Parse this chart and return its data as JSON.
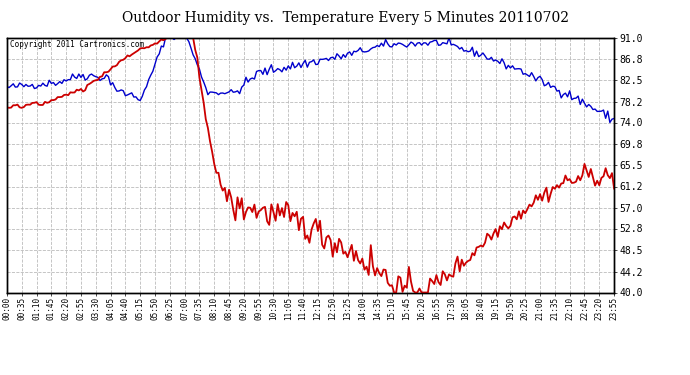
{
  "title": "Outdoor Humidity vs.  Temperature Every 5 Minutes 20110702",
  "copyright_text": "Copyright 2011 Cartronics.com",
  "bg_color": "#ffffff",
  "plot_bg_color": "#ffffff",
  "grid_color": "#bbbbbb",
  "line_color_humidity": "#0000cc",
  "line_color_temp": "#cc0000",
  "right_yticks": [
    40.0,
    44.2,
    48.5,
    52.8,
    57.0,
    61.2,
    65.5,
    69.8,
    74.0,
    78.2,
    82.5,
    86.8,
    91.0
  ],
  "ymin": 40.0,
  "ymax": 91.0,
  "num_points": 288
}
